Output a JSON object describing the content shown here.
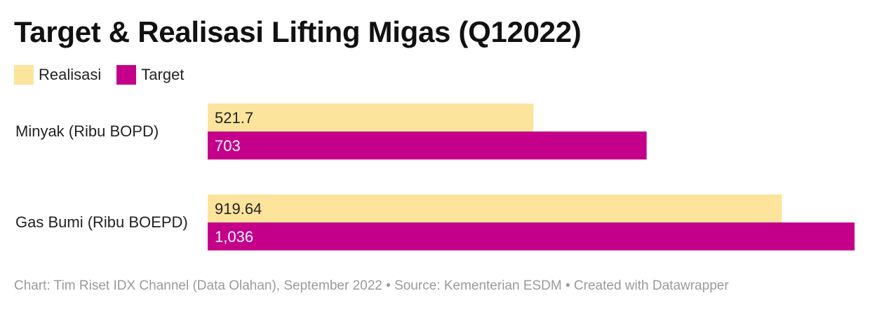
{
  "chart_data": {
    "type": "bar",
    "orientation": "horizontal",
    "title": "Target & Realisasi Lifting Migas (Q12022)",
    "categories": [
      "Minyak (Ribu BOPD)",
      "Gas Bumi (Ribu BOEPD)"
    ],
    "series": [
      {
        "name": "Realisasi",
        "color": "#fde49c",
        "values": [
          521.7,
          919.64
        ],
        "labels": [
          "521.7",
          "919.64"
        ]
      },
      {
        "name": "Target",
        "color": "#c4008b",
        "values": [
          703,
          1036
        ],
        "labels": [
          "703",
          "1,036"
        ]
      }
    ],
    "xlim": [
      0,
      1036
    ],
    "grid": false,
    "legend_position": "top-left"
  },
  "footer": {
    "text": "Chart: Tim Riset IDX Channel (Data Olahan), September 2022 • Source: Kementerian ESDM • Created with Datawrapper"
  }
}
